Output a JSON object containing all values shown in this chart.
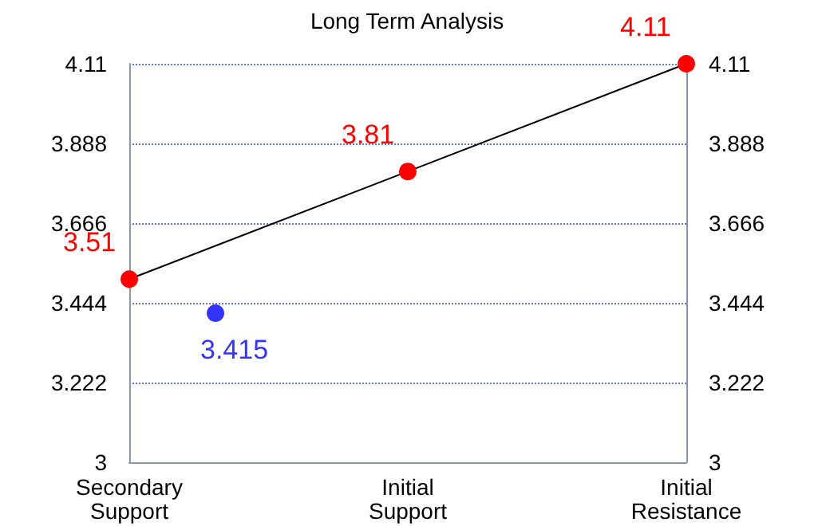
{
  "chart_data": {
    "type": "line",
    "title": "Long Term Analysis",
    "categories": [
      "Secondary\nSupport",
      "Initial\nSupport",
      "Initial\nResistance"
    ],
    "ylim": [
      3,
      4.11
    ],
    "yticks": [
      3,
      3.222,
      3.444,
      3.666,
      3.888,
      4.11
    ],
    "y2lim": [
      3,
      4.11
    ],
    "y2ticks": [
      3,
      3.222,
      3.444,
      3.666,
      3.888,
      4.11
    ],
    "grid": "y",
    "data_labels": true,
    "marker": "circle",
    "line_style": "solid",
    "series": [
      {
        "color": "#000000",
        "colors": [
          "#ff0000",
          "#ff0000",
          "#ff0000"
        ],
        "values": [
          3.51,
          3.81,
          4.11
        ]
      },
      {
        "type": "scatter",
        "x": [
          "Secondary\nSupport"
        ],
        "color": "#0000ff",
        "values": [
          3.415
        ]
      }
    ]
  }
}
